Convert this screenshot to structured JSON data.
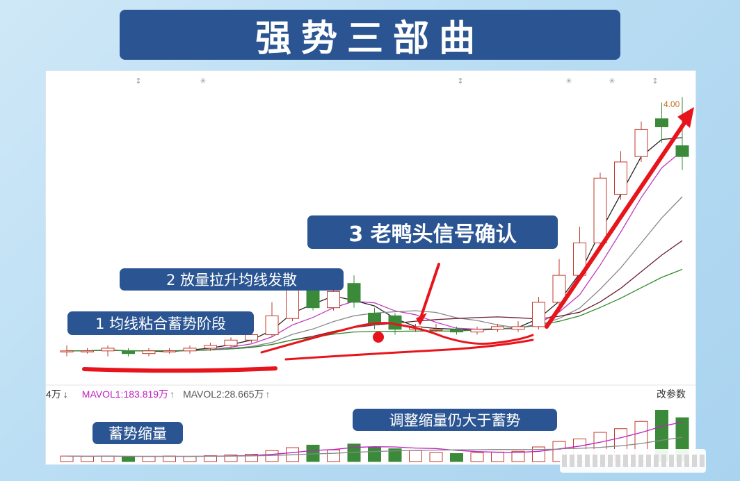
{
  "title": "强势三部曲",
  "labels": {
    "stage1": "1 均线粘合蓄势阶段",
    "stage2": "2 放量拉升均线发散",
    "stage3": "3 老鸭头信号确认",
    "vol_left": "蓄势缩量",
    "vol_right": "调整缩量仍大于蓄势"
  },
  "volume_header": {
    "unit_prefix": "4万",
    "mavol1": "MAVOL1:183.819万",
    "mavol2": "MAVOL2:28.665万",
    "arrow_down": "↓",
    "arrow_up": "↑",
    "change_params": "改参数"
  },
  "price_top_label": "4.00",
  "colors": {
    "banner": "#2b5592",
    "up_candle": "#c0392b",
    "down_candle": "#3a8a3a",
    "annotation": "#e8141c",
    "mavol1": "#c020c0"
  },
  "chart_data": {
    "type": "candlestick",
    "title": "强势三部曲",
    "note": "candles read approximately from screenshot; bars = volume",
    "candles": [
      {
        "o": 3.12,
        "h": 3.14,
        "l": 3.1,
        "c": 3.12
      },
      {
        "o": 3.12,
        "h": 3.13,
        "l": 3.11,
        "c": 3.12
      },
      {
        "o": 3.12,
        "h": 3.14,
        "l": 3.1,
        "c": 3.13
      },
      {
        "o": 3.12,
        "h": 3.13,
        "l": 3.1,
        "c": 3.11
      },
      {
        "o": 3.11,
        "h": 3.13,
        "l": 3.1,
        "c": 3.12
      },
      {
        "o": 3.12,
        "h": 3.13,
        "l": 3.11,
        "c": 3.12
      },
      {
        "o": 3.12,
        "h": 3.14,
        "l": 3.11,
        "c": 3.13
      },
      {
        "o": 3.13,
        "h": 3.15,
        "l": 3.12,
        "c": 3.14
      },
      {
        "o": 3.14,
        "h": 3.17,
        "l": 3.13,
        "c": 3.16
      },
      {
        "o": 3.16,
        "h": 3.19,
        "l": 3.15,
        "c": 3.18
      },
      {
        "o": 3.18,
        "h": 3.3,
        "l": 3.17,
        "c": 3.25
      },
      {
        "o": 3.24,
        "h": 3.4,
        "l": 3.23,
        "c": 3.35
      },
      {
        "o": 3.38,
        "h": 3.4,
        "l": 3.27,
        "c": 3.28
      },
      {
        "o": 3.28,
        "h": 3.36,
        "l": 3.27,
        "c": 3.34
      },
      {
        "o": 3.37,
        "h": 3.4,
        "l": 3.28,
        "c": 3.3
      },
      {
        "o": 3.26,
        "h": 3.28,
        "l": 3.2,
        "c": 3.22
      },
      {
        "o": 3.25,
        "h": 3.26,
        "l": 3.18,
        "c": 3.2
      },
      {
        "o": 3.2,
        "h": 3.22,
        "l": 3.19,
        "c": 3.21
      },
      {
        "o": 3.2,
        "h": 3.22,
        "l": 3.19,
        "c": 3.2
      },
      {
        "o": 3.2,
        "h": 3.21,
        "l": 3.18,
        "c": 3.19
      },
      {
        "o": 3.19,
        "h": 3.21,
        "l": 3.18,
        "c": 3.2
      },
      {
        "o": 3.2,
        "h": 3.22,
        "l": 3.19,
        "c": 3.21
      },
      {
        "o": 3.2,
        "h": 3.23,
        "l": 3.19,
        "c": 3.21
      },
      {
        "o": 3.21,
        "h": 3.32,
        "l": 3.2,
        "c": 3.3
      },
      {
        "o": 3.3,
        "h": 3.46,
        "l": 3.29,
        "c": 3.4
      },
      {
        "o": 3.4,
        "h": 3.58,
        "l": 3.39,
        "c": 3.52
      },
      {
        "o": 3.52,
        "h": 3.78,
        "l": 3.51,
        "c": 3.76
      },
      {
        "o": 3.7,
        "h": 3.86,
        "l": 3.68,
        "c": 3.82
      },
      {
        "o": 3.84,
        "h": 3.97,
        "l": 3.82,
        "c": 3.94
      },
      {
        "o": 3.98,
        "h": 4.04,
        "l": 3.89,
        "c": 3.95
      },
      {
        "o": 3.88,
        "h": 4.06,
        "l": 3.79,
        "c": 3.84
      }
    ],
    "volume": [
      15,
      14,
      15,
      13,
      14,
      15,
      14,
      16,
      18,
      20,
      30,
      38,
      45,
      32,
      48,
      40,
      35,
      30,
      25,
      22,
      24,
      26,
      28,
      40,
      55,
      62,
      80,
      90,
      110,
      140,
      120
    ],
    "ma_lines": 5
  }
}
